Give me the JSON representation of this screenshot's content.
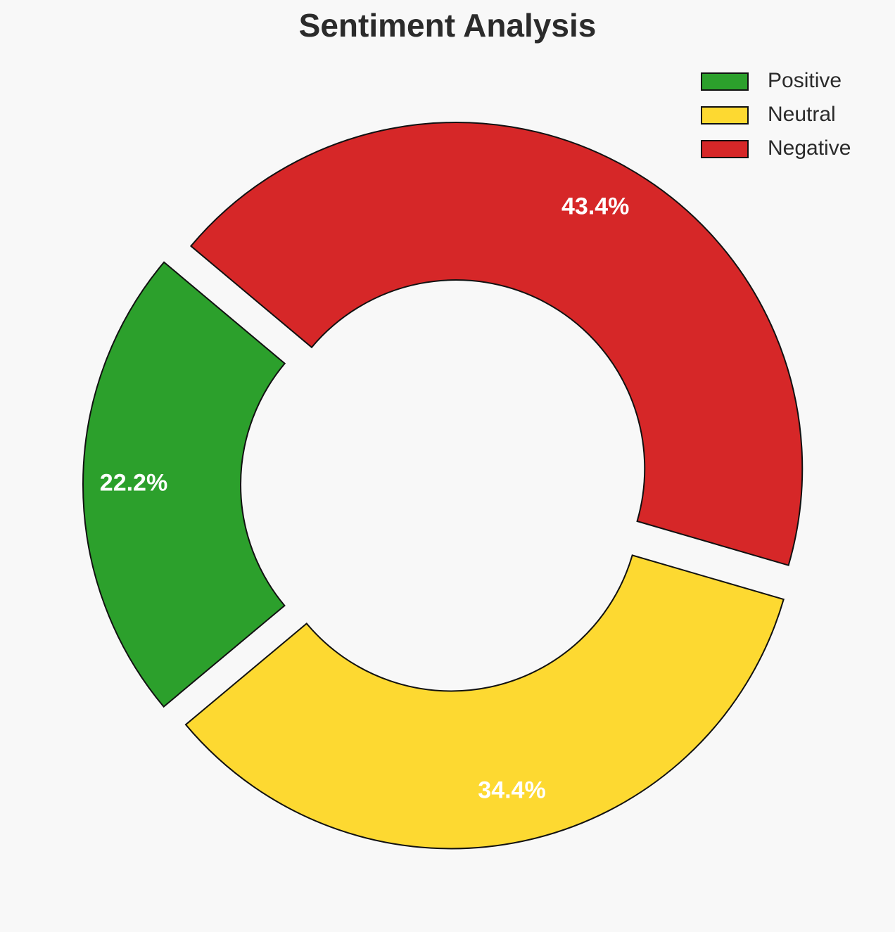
{
  "chart_data": {
    "type": "donut",
    "title": "Sentiment Analysis",
    "categories": [
      "Positive",
      "Neutral",
      "Negative"
    ],
    "values": [
      22.2,
      34.4,
      43.4
    ],
    "value_labels": [
      "22.2%",
      "34.4%",
      "43.4%"
    ],
    "colors": [
      "#2ca02c",
      "#fdd931",
      "#d62728"
    ],
    "legend": "upper right"
  }
}
